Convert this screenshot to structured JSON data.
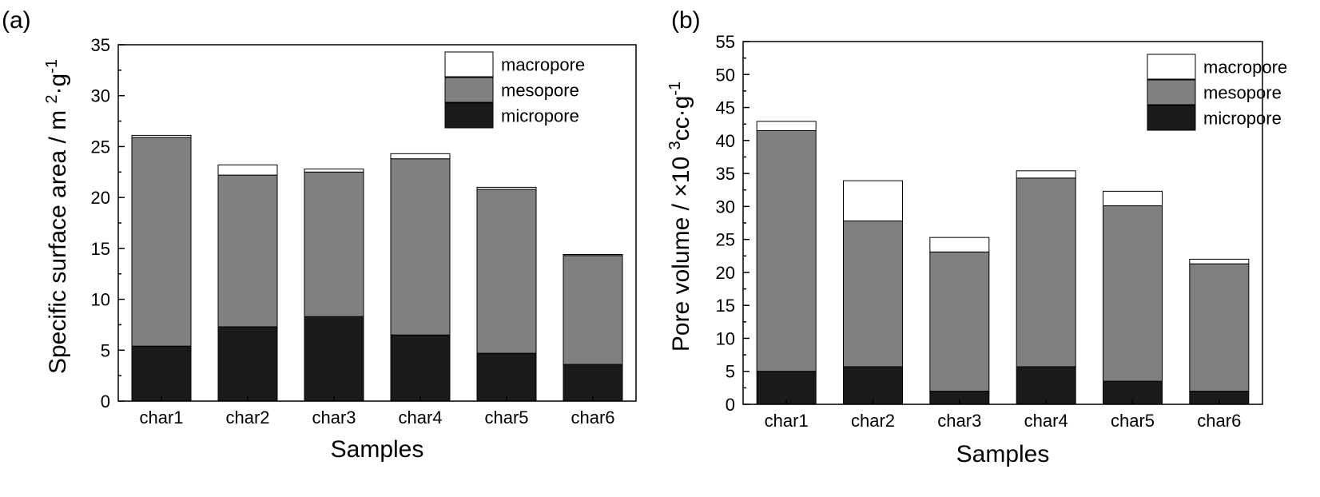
{
  "chart_data": [
    {
      "type": "bar",
      "stacked": true,
      "panel_label": "(a)",
      "title": "",
      "xlabel": "Samples",
      "ylabel": "Specific surface area / m",
      "ylabel_sup1": "2",
      "ylabel_mid": "·g",
      "ylabel_sup2": "-1",
      "ylim": [
        0,
        35
      ],
      "yticks": [
        0,
        5,
        10,
        15,
        20,
        25,
        30,
        35
      ],
      "categories": [
        "char1",
        "char2",
        "char3",
        "char4",
        "char5",
        "char6"
      ],
      "legend_position": "top-right",
      "series": [
        {
          "name": "micropore",
          "color": "#1a1a1a",
          "values": [
            5.4,
            7.3,
            8.3,
            6.5,
            4.7,
            3.6
          ]
        },
        {
          "name": "mesopore",
          "color": "#808080",
          "values": [
            20.5,
            14.9,
            14.2,
            17.3,
            16.1,
            10.7
          ]
        },
        {
          "name": "macropore",
          "color": "#ffffff",
          "values": [
            0.2,
            1.0,
            0.3,
            0.5,
            0.2,
            0.1
          ]
        }
      ]
    },
    {
      "type": "bar",
      "stacked": true,
      "panel_label": "(b)",
      "title": "",
      "xlabel": "Samples",
      "ylabel": "Pore volume / ×10",
      "ylabel_sup1": "3",
      "ylabel_mid": "cc·g",
      "ylabel_sup2": "-1",
      "ylim": [
        0,
        55
      ],
      "yticks": [
        0,
        5,
        10,
        15,
        20,
        25,
        30,
        35,
        40,
        45,
        50,
        55
      ],
      "categories": [
        "char1",
        "char2",
        "char3",
        "char4",
        "char5",
        "char6"
      ],
      "legend_position": "top-right",
      "series": [
        {
          "name": "micropore",
          "color": "#1a1a1a",
          "values": [
            5.0,
            5.7,
            2.0,
            5.7,
            3.5,
            2.0
          ]
        },
        {
          "name": "mesopore",
          "color": "#808080",
          "values": [
            36.5,
            22.1,
            21.1,
            28.6,
            26.6,
            19.3
          ]
        },
        {
          "name": "macropore",
          "color": "#ffffff",
          "values": [
            1.4,
            6.1,
            2.2,
            1.1,
            2.2,
            0.7
          ]
        }
      ]
    }
  ]
}
